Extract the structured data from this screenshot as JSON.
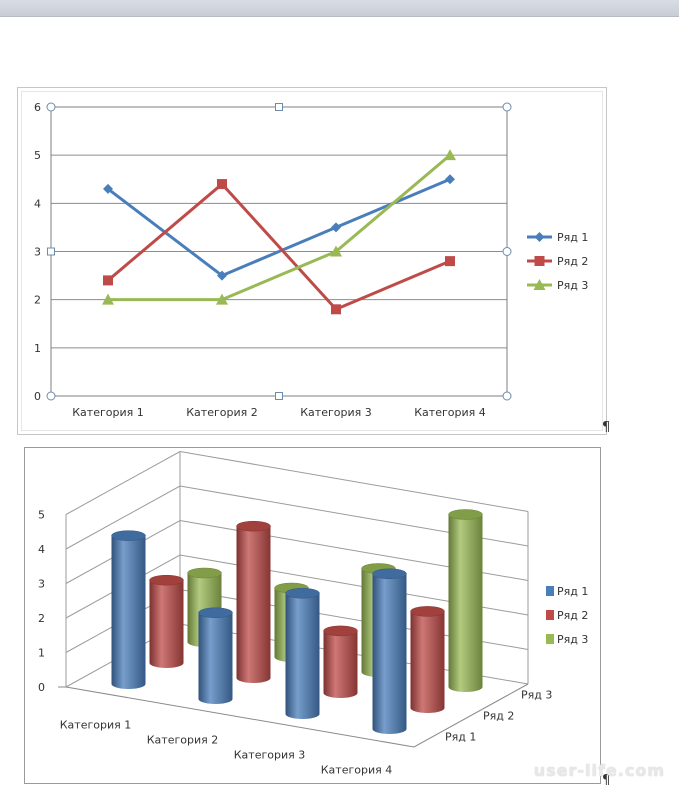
{
  "chart_data": [
    {
      "type": "line",
      "categories": [
        "Категория 1",
        "Категория 2",
        "Категория 3",
        "Категория 4"
      ],
      "series": [
        {
          "name": "Ряд 1",
          "color": "#4a7ebb",
          "marker": "diamond",
          "values": [
            4.3,
            2.5,
            3.5,
            4.5
          ]
        },
        {
          "name": "Ряд 2",
          "color": "#be4b48",
          "marker": "square",
          "values": [
            2.4,
            4.4,
            1.8,
            2.8
          ]
        },
        {
          "name": "Ряд 3",
          "color": "#98b954",
          "marker": "triangle",
          "values": [
            2,
            2,
            3,
            5
          ]
        }
      ],
      "yticks": [
        0,
        1,
        2,
        3,
        4,
        5,
        6
      ],
      "ylim": [
        0,
        6
      ],
      "grid": true,
      "legend": "right"
    },
    {
      "type": "bar",
      "style": "3d-cylinder",
      "categories": [
        "Категория 1",
        "Категория 2",
        "Категория 3",
        "Категория 4"
      ],
      "series": [
        {
          "name": "Ряд 1",
          "color": "#4a7ebb",
          "values": [
            4.3,
            2.5,
            3.5,
            4.5
          ]
        },
        {
          "name": "Ряд 2",
          "color": "#be4b48",
          "values": [
            2.4,
            4.4,
            1.8,
            2.8
          ]
        },
        {
          "name": "Ряд 3",
          "color": "#98b954",
          "values": [
            2,
            2,
            3,
            5
          ]
        }
      ],
      "yticks": [
        0,
        1,
        2,
        3,
        4,
        5
      ],
      "ylim": [
        0,
        5
      ],
      "depth_labels": [
        "Ряд 1",
        "Ряд 2",
        "Ряд 3"
      ],
      "grid": true,
      "legend": "right"
    }
  ],
  "pilcrow": "¶",
  "watermark": "user-life.com"
}
